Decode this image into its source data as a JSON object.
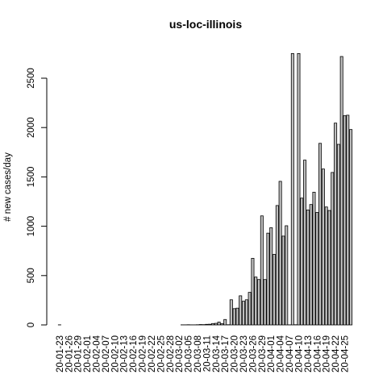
{
  "chart_data": {
    "type": "bar",
    "title": "us-loc-illinois",
    "xlabel": "",
    "ylabel": "# new cases/day",
    "ylim": [
      0,
      2750
    ],
    "grid": false,
    "legend": "none",
    "bar_fill": "#bebebe",
    "bar_stroke": "#000000",
    "categories": [
      "20-01-23",
      "20-01-24",
      "20-01-25",
      "20-01-26",
      "20-01-27",
      "20-01-28",
      "20-01-29",
      "20-01-30",
      "20-01-31",
      "20-02-01",
      "20-02-02",
      "20-02-03",
      "20-02-04",
      "20-02-05",
      "20-02-06",
      "20-02-07",
      "20-02-08",
      "20-02-09",
      "20-02-10",
      "20-02-11",
      "20-02-12",
      "20-02-13",
      "20-02-14",
      "20-02-15",
      "20-02-16",
      "20-02-17",
      "20-02-18",
      "20-02-19",
      "20-02-20",
      "20-02-21",
      "20-02-22",
      "20-02-23",
      "20-02-24",
      "20-02-25",
      "20-02-26",
      "20-02-27",
      "20-02-28",
      "20-02-29",
      "20-03-01",
      "20-03-02",
      "20-03-03",
      "20-03-04",
      "20-03-05",
      "20-03-06",
      "20-03-07",
      "20-03-08",
      "20-03-09",
      "20-03-10",
      "20-03-11",
      "20-03-12",
      "20-03-13",
      "20-03-14",
      "20-03-15",
      "20-03-16",
      "20-03-17",
      "20-03-18",
      "20-03-19",
      "20-03-20",
      "20-03-21",
      "20-03-22",
      "20-03-23",
      "20-03-24",
      "20-03-25",
      "20-03-26",
      "20-03-27",
      "20-03-28",
      "20-03-29",
      "20-03-30",
      "20-03-31",
      "20-04-01",
      "20-04-02",
      "20-04-03",
      "20-04-04",
      "20-04-05",
      "20-04-06",
      "20-04-07",
      "20-04-08",
      "20-04-09",
      "20-04-10",
      "20-04-11",
      "20-04-12",
      "20-04-13",
      "20-04-14",
      "20-04-15",
      "20-04-16",
      "20-04-17",
      "20-04-18",
      "20-04-19",
      "20-04-20",
      "20-04-21",
      "20-04-22",
      "20-04-23",
      "20-04-24",
      "20-04-25",
      "20-04-26",
      "20-04-27"
    ],
    "tick_labels": [
      "20-01-23",
      "20-01-26",
      "20-01-29",
      "20-02-01",
      "20-02-04",
      "20-02-07",
      "20-02-10",
      "20-02-13",
      "20-02-16",
      "20-02-19",
      "20-02-22",
      "20-02-25",
      "20-02-28",
      "20-03-02",
      "20-03-05",
      "20-03-08",
      "20-03-11",
      "20-03-14",
      "20-03-17",
      "20-03-20",
      "20-03-23",
      "20-03-26",
      "20-03-29",
      "20-04-01",
      "20-04-04",
      "20-04-07",
      "20-04-10",
      "20-04-13",
      "20-04-16",
      "20-04-19",
      "20-04-22",
      "20-04-25"
    ],
    "y_ticks": [
      0,
      500,
      1000,
      1500,
      2000,
      2500
    ],
    "values": [
      1,
      0,
      0,
      0,
      0,
      0,
      0,
      0,
      0,
      0,
      0,
      0,
      0,
      0,
      0,
      0,
      0,
      0,
      0,
      0,
      0,
      0,
      0,
      0,
      0,
      0,
      0,
      0,
      0,
      0,
      0,
      0,
      0,
      0,
      0,
      0,
      0,
      0,
      0,
      0,
      1,
      1,
      2,
      1,
      1,
      2,
      4,
      3,
      6,
      7,
      14,
      16,
      29,
      12,
      55,
      2,
      255,
      165,
      170,
      295,
      240,
      255,
      330,
      675,
      485,
      460,
      1105,
      460,
      930,
      985,
      715,
      1210,
      1455,
      900,
      1005,
      1,
      2800,
      2,
      2800,
      1285,
      1670,
      1165,
      1220,
      1345,
      1140,
      1840,
      1580,
      1195,
      1160,
      1545,
      2045,
      1830,
      2720,
      2120,
      2125,
      1980
    ]
  }
}
